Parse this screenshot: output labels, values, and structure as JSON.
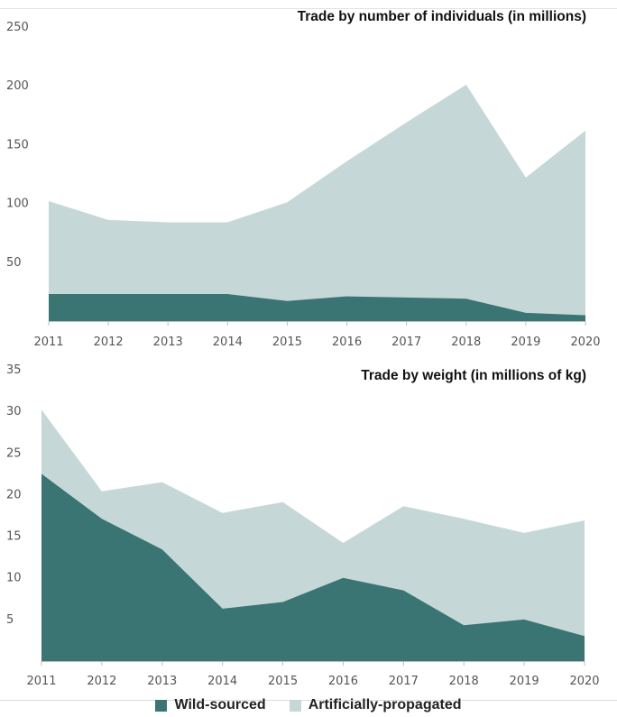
{
  "colors": {
    "wild": "#3a7473",
    "artificial": "#c5d8d7",
    "axis": "#bbbbbb",
    "tick_text": "#555555",
    "title_text": "#111111"
  },
  "legend": [
    {
      "key": "wild",
      "label": "Wild-sourced"
    },
    {
      "key": "artificial",
      "label": "Artificially-propagated"
    }
  ],
  "chart_data": [
    {
      "type": "area",
      "stacked": false,
      "title": "Trade by number of individuals (in millions)",
      "xlabel": "",
      "ylabel": "",
      "x": [
        "2011",
        "2012",
        "2013",
        "2014",
        "2015",
        "2016",
        "2017",
        "2018",
        "2019",
        "2020"
      ],
      "ylim": [
        0,
        250
      ],
      "yticks": [
        50,
        100,
        150,
        200,
        250
      ],
      "series": [
        {
          "key": "artificial",
          "name": "Artificially-propagated",
          "values": [
            102,
            86,
            84,
            84,
            101,
            136,
            169,
            201,
            122,
            162
          ]
        },
        {
          "key": "wild",
          "name": "Wild-sourced",
          "values": [
            23,
            23,
            23,
            23,
            17,
            21,
            20,
            19,
            7,
            5
          ]
        }
      ],
      "grid": false
    },
    {
      "type": "area",
      "stacked": false,
      "title": "Trade by weight (in millions of kg)",
      "xlabel": "",
      "ylabel": "",
      "x": [
        "2011",
        "2012",
        "2013",
        "2014",
        "2015",
        "2016",
        "2017",
        "2018",
        "2019",
        "2020"
      ],
      "ylim": [
        0,
        35
      ],
      "yticks": [
        5,
        10,
        15,
        20,
        25,
        30,
        35
      ],
      "series": [
        {
          "key": "artificial",
          "name": "Artificially-propagated",
          "values": [
            30.2,
            20.4,
            21.5,
            17.8,
            19.1,
            14.2,
            18.6,
            17.1,
            15.4,
            16.9
          ]
        },
        {
          "key": "wild",
          "name": "Wild-sourced",
          "values": [
            22.5,
            17.1,
            13.4,
            6.3,
            7.1,
            10.0,
            8.5,
            4.3,
            5.0,
            3.0
          ]
        }
      ],
      "grid": false
    }
  ]
}
